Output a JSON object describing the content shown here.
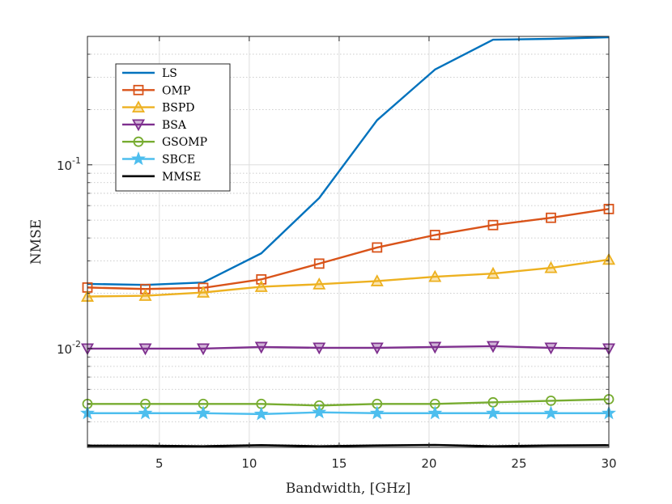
{
  "chart_data": {
    "type": "line",
    "title": "",
    "xlabel": "Bandwidth, [GHz]",
    "ylabel": "NMSE",
    "yscale": "log",
    "xlim": [
      1,
      30
    ],
    "ylim": [
      0.0029,
      0.5
    ],
    "grid": true,
    "legend_position": "top-left",
    "x_ticks": [
      5,
      10,
      15,
      20,
      25,
      30
    ],
    "x_tick_labels": [
      "5",
      "10",
      "15",
      "20",
      "25",
      "30"
    ],
    "y_ticks": [
      0.01,
      0.1
    ],
    "y_tick_bases": [
      "10",
      "10"
    ],
    "y_tick_exponents": [
      "-2",
      "-1"
    ],
    "x": [
      1,
      4.22,
      7.44,
      10.67,
      13.89,
      17.11,
      20.33,
      23.56,
      26.78,
      30
    ],
    "series": [
      {
        "name": "LS",
        "color": "#0072BD",
        "marker": "none",
        "x": [
          1,
          4.22,
          7.44,
          10.67,
          13.89,
          17.11,
          20.33,
          23.56,
          26.78,
          30
        ],
        "values": [
          0.0225,
          0.0222,
          0.0229,
          0.033,
          0.066,
          0.175,
          0.33,
          0.48,
          0.485,
          0.495
        ]
      },
      {
        "name": "OMP",
        "color": "#D95319",
        "marker": "square",
        "x": [
          1,
          4.22,
          7.44,
          10.67,
          13.89,
          17.11,
          20.33,
          23.56,
          26.78,
          30
        ],
        "values": [
          0.0215,
          0.0211,
          0.0214,
          0.0238,
          0.029,
          0.0355,
          0.0415,
          0.047,
          0.0515,
          0.0575
        ]
      },
      {
        "name": "BSPD",
        "color": "#EDB120",
        "marker": "triangle-up",
        "x": [
          1,
          4.22,
          7.44,
          10.67,
          13.89,
          17.11,
          20.33,
          23.56,
          26.78,
          30
        ],
        "values": [
          0.0192,
          0.0194,
          0.0202,
          0.0217,
          0.0224,
          0.0233,
          0.0246,
          0.0256,
          0.0275,
          0.0305
        ]
      },
      {
        "name": "BSA",
        "color": "#7E2F8E",
        "marker": "triangle-down",
        "x": [
          1,
          4.22,
          7.44,
          10.67,
          13.89,
          17.11,
          20.33,
          23.56,
          26.78,
          30
        ],
        "values": [
          0.01,
          0.01,
          0.01,
          0.0102,
          0.0101,
          0.0101,
          0.0102,
          0.0103,
          0.0101,
          0.01
        ]
      },
      {
        "name": "GSOMP",
        "color": "#77AC30",
        "marker": "circle",
        "x": [
          1,
          4.22,
          7.44,
          10.67,
          13.89,
          17.11,
          20.33,
          23.56,
          26.78,
          30
        ],
        "values": [
          0.005,
          0.005,
          0.005,
          0.005,
          0.0049,
          0.005,
          0.005,
          0.0051,
          0.0052,
          0.0053
        ]
      },
      {
        "name": "SBCE",
        "color": "#4DBEEE",
        "marker": "star",
        "x": [
          1,
          4.22,
          7.44,
          10.67,
          13.89,
          17.11,
          20.33,
          23.56,
          26.78,
          30
        ],
        "values": [
          0.00445,
          0.00445,
          0.00445,
          0.0044,
          0.0045,
          0.00445,
          0.00445,
          0.00445,
          0.00445,
          0.00445
        ]
      },
      {
        "name": "MMSE",
        "color": "#000000",
        "marker": "none",
        "x": [
          1,
          4.22,
          7.44,
          10.67,
          13.89,
          17.11,
          20.33,
          23.56,
          26.78,
          30
        ],
        "values": [
          0.00296,
          0.00296,
          0.00294,
          0.00298,
          0.00294,
          0.00297,
          0.00299,
          0.00294,
          0.00297,
          0.00298
        ]
      }
    ]
  }
}
